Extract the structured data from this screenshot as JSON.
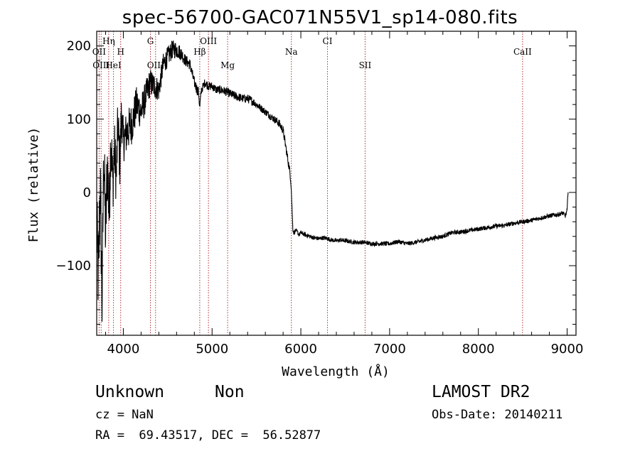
{
  "chart_data": {
    "type": "line",
    "title": "spec-56700-GAC071N55V1_sp14-080.fits",
    "xlabel": "Wavelength (Å)",
    "ylabel": "Flux (relative)",
    "xlim": [
      3700,
      9100
    ],
    "ylim": [
      -195,
      220
    ],
    "x_ticks": [
      4000,
      5000,
      6000,
      7000,
      8000,
      9000
    ],
    "y_ticks": [
      -100,
      0,
      100,
      200
    ],
    "grid": false,
    "line_color": "#000000",
    "marker_color": "#b03030",
    "series": [
      {
        "x": [
          3700,
          3720,
          3740,
          3760,
          3780,
          3800,
          3820,
          3840,
          3860,
          3880,
          3900,
          3920,
          3940,
          3960,
          3980,
          4000,
          4050,
          4100,
          4150,
          4200,
          4250,
          4300,
          4350,
          4400,
          4450,
          4500,
          4550,
          4600,
          4650,
          4700,
          4750,
          4800,
          4850,
          4860,
          4880,
          4920,
          4960,
          5000,
          5050,
          5100,
          5150,
          5200,
          5250,
          5300,
          5350,
          5400,
          5450,
          5500,
          5550,
          5600,
          5650,
          5700,
          5750,
          5800,
          5820,
          5840,
          5860,
          5880,
          5890,
          5900,
          5910,
          5920,
          5940,
          5960,
          5980,
          6000,
          6050,
          6100,
          6150,
          6200,
          6250,
          6300,
          6350,
          6400,
          6450,
          6500,
          6600,
          6700,
          6800,
          6900,
          7000,
          7100,
          7200,
          7300,
          7400,
          7500,
          7600,
          7700,
          7800,
          7900,
          8000,
          8100,
          8200,
          8300,
          8400,
          8500,
          8600,
          8700,
          8800,
          8900,
          8950,
          8980,
          9000,
          9010
        ],
        "y": [
          -50,
          -120,
          20,
          -150,
          60,
          -60,
          40,
          -30,
          80,
          10,
          60,
          20,
          95,
          40,
          110,
          70,
          85,
          95,
          120,
          110,
          130,
          150,
          145,
          140,
          175,
          185,
          195,
          195,
          190,
          180,
          175,
          150,
          135,
          115,
          140,
          150,
          145,
          145,
          140,
          140,
          138,
          135,
          132,
          130,
          128,
          128,
          125,
          120,
          115,
          110,
          105,
          100,
          95,
          85,
          70,
          55,
          40,
          25,
          10,
          -20,
          -50,
          -55,
          -52,
          -54,
          -58,
          -55,
          -58,
          -60,
          -62,
          -63,
          -62,
          -63,
          -65,
          -66,
          -65,
          -66,
          -68,
          -68,
          -70,
          -70,
          -70,
          -67,
          -70,
          -68,
          -65,
          -62,
          -60,
          -55,
          -54,
          -52,
          -50,
          -48,
          -46,
          -45,
          -42,
          -40,
          -38,
          -35,
          -32,
          -30,
          -28,
          -32,
          -25,
          0
        ],
        "noise": [
          60,
          70,
          60,
          60,
          55,
          55,
          50,
          50,
          45,
          45,
          40,
          40,
          40,
          35,
          35,
          30,
          30,
          28,
          26,
          24,
          22,
          20,
          18,
          16,
          15,
          14,
          13,
          12,
          10,
          8,
          8,
          7,
          8,
          7,
          6,
          6,
          6,
          6,
          6,
          6,
          6,
          6,
          6,
          6,
          6,
          6,
          6,
          5,
          5,
          5,
          5,
          5,
          6,
          6,
          6,
          6,
          6,
          6,
          4,
          3,
          3,
          3,
          3,
          3,
          3,
          3,
          3,
          3,
          3,
          3,
          3,
          3,
          3,
          3,
          3,
          3,
          3,
          3,
          3,
          3,
          3,
          3,
          3,
          3,
          3,
          3,
          3,
          3,
          3,
          3,
          3,
          3,
          3,
          3,
          3,
          3,
          3,
          3,
          3,
          3,
          3,
          3,
          3,
          3
        ]
      }
    ],
    "line_markers": [
      {
        "name": "Hη",
        "x": 3835,
        "level": 0
      },
      {
        "name": "OII",
        "x": 3727,
        "level": 1
      },
      {
        "name": "H",
        "x": 3970,
        "level": 1
      },
      {
        "name": "OIII",
        "x": 3750,
        "level": 2
      },
      {
        "name": "HeI",
        "x": 3889,
        "level": 2
      },
      {
        "name": "G",
        "x": 4305,
        "level": 0
      },
      {
        "name": "OIII",
        "x": 4363,
        "level": 2
      },
      {
        "name": "OIII",
        "x": 4959,
        "level": 0
      },
      {
        "name": "Hβ",
        "x": 4861,
        "level": 1
      },
      {
        "name": "Mg",
        "x": 5175,
        "level": 2
      },
      {
        "name": "Na",
        "x": 5893,
        "level": 1
      },
      {
        "name": "CI",
        "x": 6300,
        "level": 0
      },
      {
        "name": "SII",
        "x": 6724,
        "level": 2
      },
      {
        "name": "CaII",
        "x": 8498,
        "level": 1
      }
    ]
  },
  "info": {
    "object_class": "Unknown",
    "object_subclass": "Non",
    "survey": "LAMOST DR2",
    "redshift": "cz = NaN",
    "obs_date": "Obs-Date: 20140211",
    "coordinates": "RA =  69.43517, DEC =  56.52877"
  }
}
